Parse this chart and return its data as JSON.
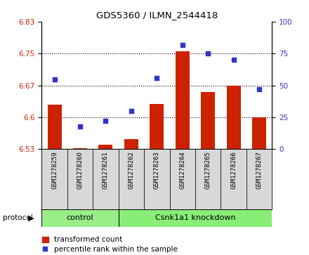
{
  "title": "GDS5360 / ILMN_2544418",
  "samples": [
    "GSM1278259",
    "GSM1278260",
    "GSM1278261",
    "GSM1278262",
    "GSM1278263",
    "GSM1278264",
    "GSM1278265",
    "GSM1278266",
    "GSM1278267"
  ],
  "bar_values": [
    6.63,
    6.527,
    6.535,
    6.548,
    6.632,
    6.755,
    6.66,
    6.675,
    6.6
  ],
  "dot_values": [
    55,
    18,
    22,
    30,
    56,
    82,
    75,
    70,
    47
  ],
  "ylim_left": [
    6.525,
    6.825
  ],
  "ylim_right": [
    0,
    100
  ],
  "yticks_left": [
    6.525,
    6.6,
    6.675,
    6.75,
    6.825
  ],
  "yticks_right": [
    0,
    25,
    50,
    75,
    100
  ],
  "bar_color": "#cc2200",
  "dot_color": "#3333cc",
  "control_label": "control",
  "control_indices": [
    0,
    1,
    2
  ],
  "knockdown_label": "Csnk1a1 knockdown",
  "knockdown_indices": [
    3,
    4,
    5,
    6,
    7,
    8
  ],
  "group_color_control": "#99ee88",
  "group_color_knockdown": "#88ee77",
  "protocol_label": "protocol",
  "legend_bar_label": "transformed count",
  "legend_dot_label": "percentile rank within the sample",
  "grid_lines": [
    6.6,
    6.675,
    6.75
  ],
  "fig_width": 4.4,
  "fig_height": 3.63,
  "dpi": 100
}
